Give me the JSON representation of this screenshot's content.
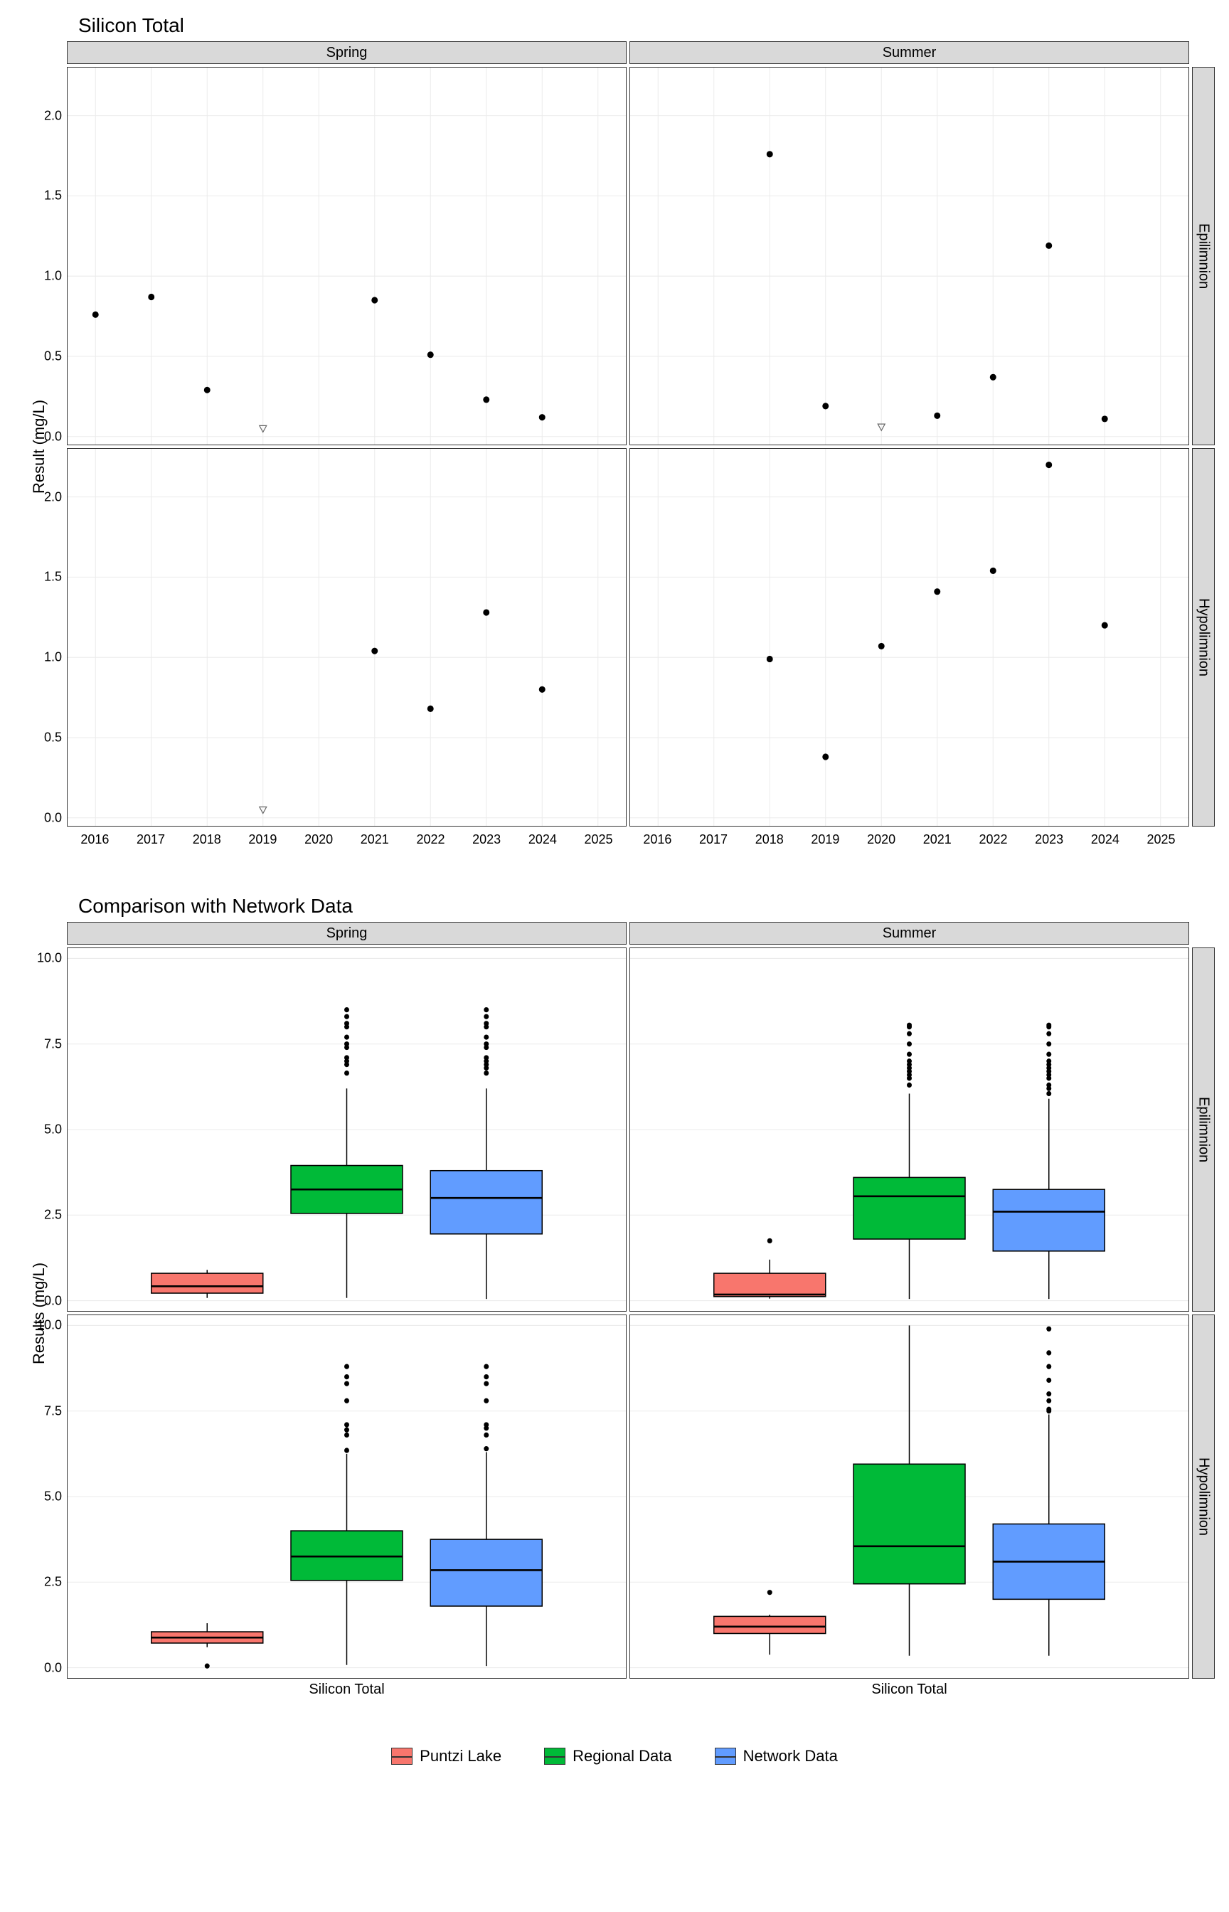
{
  "scatter": {
    "title": "Silicon Total",
    "ylabel": "Result (mg/L)",
    "cols": [
      "Spring",
      "Summer"
    ],
    "rows": [
      "Epilimnion",
      "Hypolimnion"
    ],
    "xlim": [
      2015.5,
      2025.5
    ],
    "ylim": [
      -0.05,
      2.3
    ],
    "xticks": [
      2016,
      2017,
      2018,
      2019,
      2020,
      2021,
      2022,
      2023,
      2024,
      2025
    ],
    "yticks": [
      0.0,
      0.5,
      1.0,
      1.5,
      2.0
    ],
    "grid_color": "#ebebeb",
    "point_color": "#000000",
    "point_radius": 4.5,
    "panels": {
      "spring_epi": {
        "points": [
          [
            2016,
            0.76
          ],
          [
            2017,
            0.87
          ],
          [
            2018,
            0.29
          ],
          [
            2021,
            0.85
          ],
          [
            2022,
            0.51
          ],
          [
            2023,
            0.23
          ],
          [
            2024,
            0.12
          ]
        ],
        "open": [
          [
            2019,
            0.05
          ]
        ]
      },
      "summer_epi": {
        "points": [
          [
            2018,
            1.76
          ],
          [
            2019,
            0.19
          ],
          [
            2021,
            0.13
          ],
          [
            2022,
            0.37
          ],
          [
            2023,
            1.19
          ],
          [
            2024,
            0.11
          ]
        ],
        "open": [
          [
            2020,
            0.06
          ]
        ]
      },
      "spring_hypo": {
        "points": [
          [
            2021,
            1.04
          ],
          [
            2022,
            0.68
          ],
          [
            2023,
            1.28
          ],
          [
            2024,
            0.8
          ]
        ],
        "open": [
          [
            2019,
            0.05
          ]
        ]
      },
      "summer_hypo": {
        "points": [
          [
            2018,
            0.99
          ],
          [
            2019,
            0.38
          ],
          [
            2020,
            1.07
          ],
          [
            2021,
            1.41
          ],
          [
            2022,
            1.54
          ],
          [
            2023,
            2.2
          ],
          [
            2024,
            1.2
          ]
        ],
        "open": []
      }
    }
  },
  "box": {
    "title": "Comparison with Network Data",
    "ylabel": "Results (mg/L)",
    "xlabel": "Silicon Total",
    "cols": [
      "Spring",
      "Summer"
    ],
    "rows": [
      "Epilimnion",
      "Hypolimnion"
    ],
    "ylim": [
      -0.3,
      10.3
    ],
    "yticks": [
      0.0,
      2.5,
      5.0,
      7.5,
      10.0
    ],
    "grid_color": "#ebebeb",
    "series": [
      {
        "name": "Puntzi Lake",
        "color": "#f8766d"
      },
      {
        "name": "Regional Data",
        "color": "#00ba38"
      },
      {
        "name": "Network Data",
        "color": "#619cff"
      }
    ],
    "box_width": 0.2,
    "panels": {
      "spring_epi": [
        {
          "x": 0.25,
          "min": 0.08,
          "q1": 0.22,
          "med": 0.42,
          "q3": 0.8,
          "max": 0.9,
          "out": []
        },
        {
          "x": 0.5,
          "min": 0.08,
          "q1": 2.55,
          "med": 3.25,
          "q3": 3.95,
          "max": 6.2,
          "out": [
            6.65,
            6.9,
            7.0,
            7.1,
            7.4,
            7.5,
            7.7,
            8.0,
            8.1,
            8.3,
            8.5
          ]
        },
        {
          "x": 0.75,
          "min": 0.05,
          "q1": 1.95,
          "med": 3.0,
          "q3": 3.8,
          "max": 6.2,
          "out": [
            6.65,
            6.8,
            6.9,
            7.0,
            7.1,
            7.4,
            7.5,
            7.7,
            8.0,
            8.1,
            8.3,
            8.5
          ]
        }
      ],
      "summer_epi": [
        {
          "x": 0.25,
          "min": 0.06,
          "q1": 0.12,
          "med": 0.18,
          "q3": 0.8,
          "max": 1.2,
          "out": [
            1.75
          ]
        },
        {
          "x": 0.5,
          "min": 0.05,
          "q1": 1.8,
          "med": 3.05,
          "q3": 3.6,
          "max": 6.05,
          "out": [
            6.3,
            6.5,
            6.6,
            6.7,
            6.8,
            6.9,
            7.0,
            7.2,
            7.5,
            7.8,
            8.0,
            8.05
          ]
        },
        {
          "x": 0.75,
          "min": 0.05,
          "q1": 1.45,
          "med": 2.6,
          "q3": 3.25,
          "max": 5.9,
          "out": [
            6.05,
            6.2,
            6.3,
            6.5,
            6.6,
            6.7,
            6.8,
            6.9,
            7.0,
            7.2,
            7.5,
            7.8,
            8.0,
            8.05
          ]
        }
      ],
      "spring_hypo": [
        {
          "x": 0.25,
          "min": 0.6,
          "q1": 0.72,
          "med": 0.88,
          "q3": 1.05,
          "max": 1.3,
          "out": [
            0.05
          ]
        },
        {
          "x": 0.5,
          "min": 0.08,
          "q1": 2.55,
          "med": 3.25,
          "q3": 4.0,
          "max": 6.25,
          "out": [
            6.35,
            6.8,
            6.95,
            7.1,
            7.8,
            8.3,
            8.5,
            8.8
          ]
        },
        {
          "x": 0.75,
          "min": 0.05,
          "q1": 1.8,
          "med": 2.85,
          "q3": 3.75,
          "max": 6.3,
          "out": [
            6.4,
            6.8,
            7.0,
            7.1,
            7.8,
            8.3,
            8.5,
            8.8
          ]
        }
      ],
      "summer_hypo": [
        {
          "x": 0.25,
          "min": 0.38,
          "q1": 1.0,
          "med": 1.2,
          "q3": 1.5,
          "max": 1.55,
          "out": [
            2.2
          ]
        },
        {
          "x": 0.5,
          "min": 0.35,
          "q1": 2.45,
          "med": 3.55,
          "q3": 5.95,
          "max": 10.0,
          "out": []
        },
        {
          "x": 0.75,
          "min": 0.35,
          "q1": 2.0,
          "med": 3.1,
          "q3": 4.2,
          "max": 7.4,
          "out": [
            7.5,
            7.55,
            7.8,
            8.0,
            8.4,
            8.8,
            9.2,
            9.9
          ]
        }
      ]
    }
  }
}
